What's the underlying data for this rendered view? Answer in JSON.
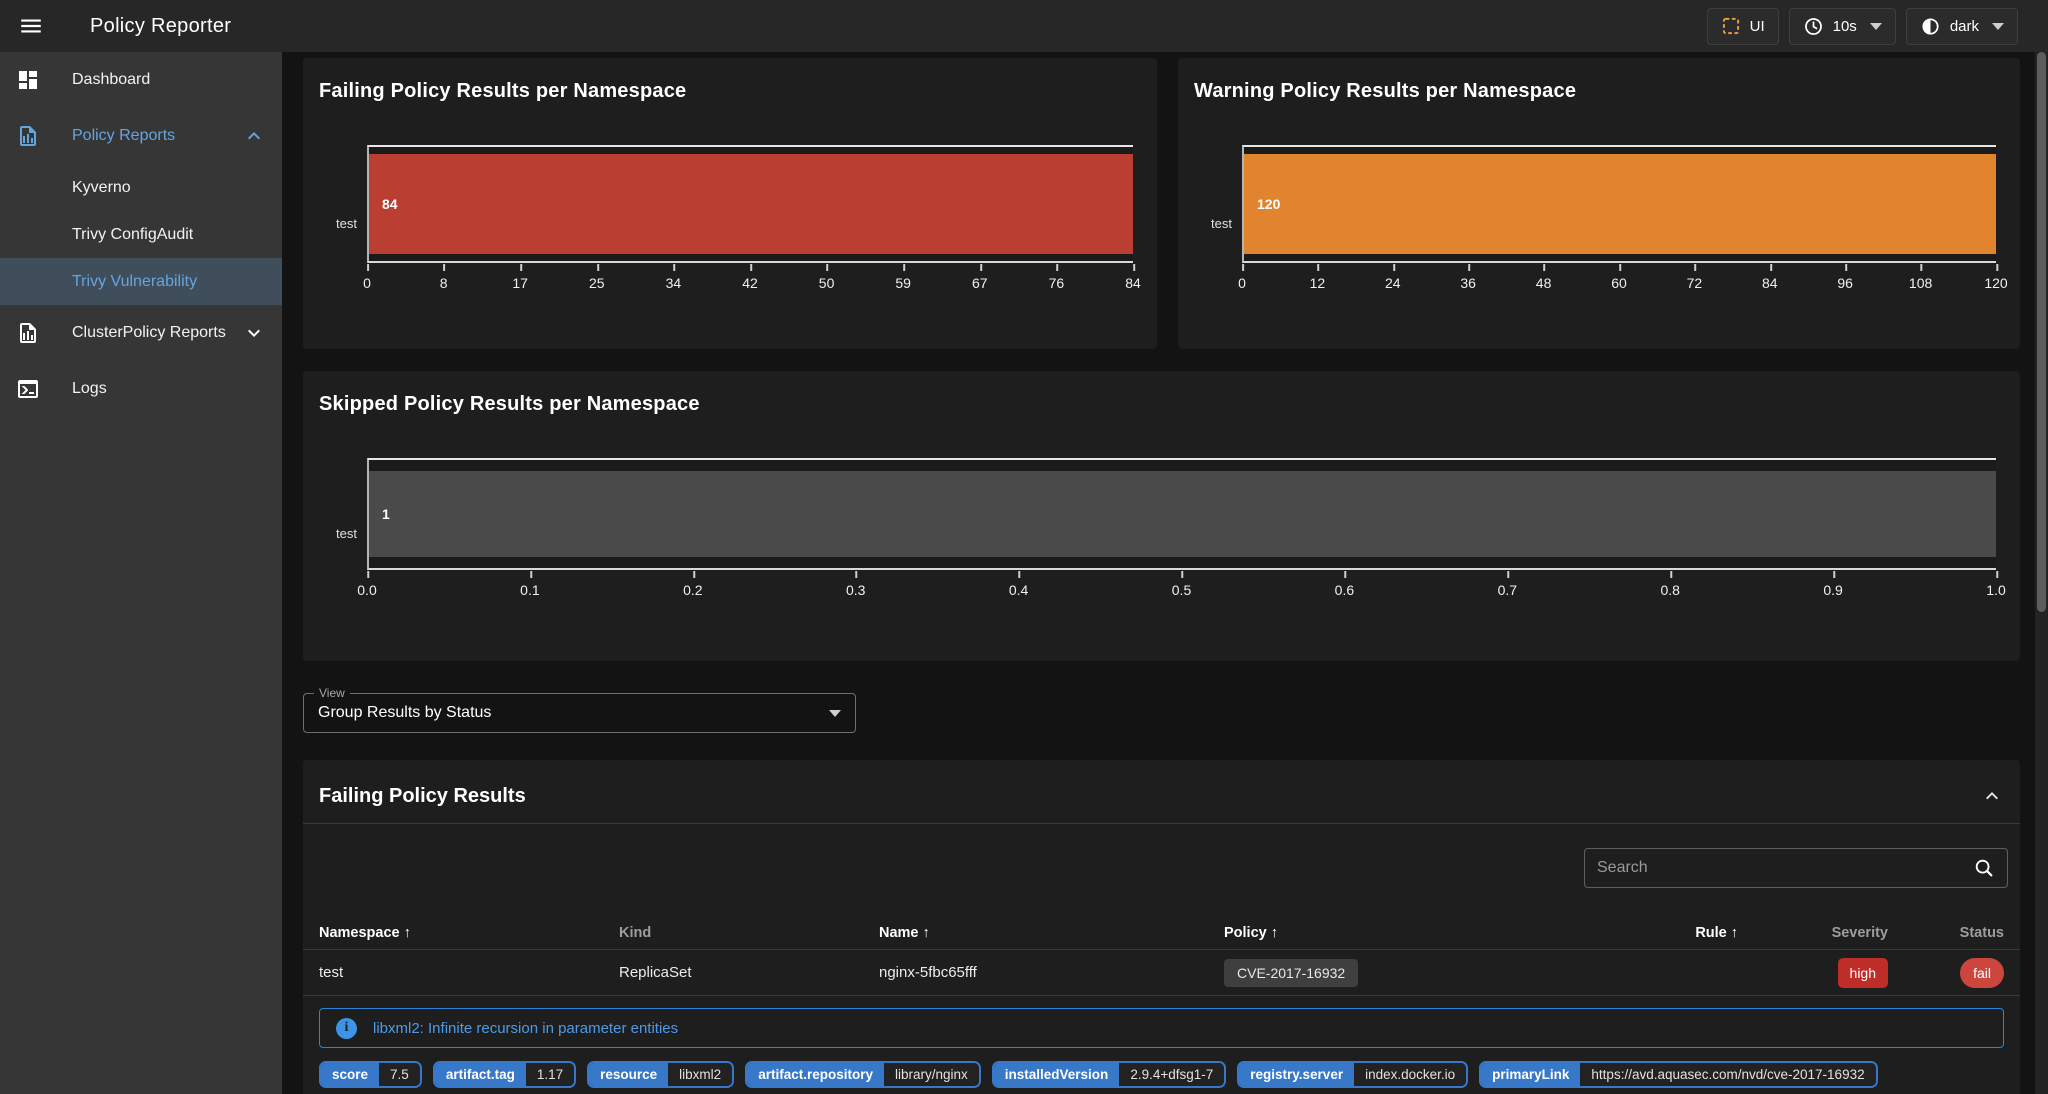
{
  "app_bar": {
    "title": "Policy Reporter",
    "ui_button_label": "UI",
    "refresh_interval_value": "10s",
    "theme_value": "dark"
  },
  "sidebar": {
    "items": [
      {
        "label": "Dashboard"
      },
      {
        "label": "Policy Reports"
      },
      {
        "label": "ClusterPolicy Reports"
      },
      {
        "label": "Logs"
      }
    ],
    "policy_reports_children": [
      {
        "label": "Kyverno",
        "active": false
      },
      {
        "label": "Trivy ConfigAudit",
        "active": false
      },
      {
        "label": "Trivy Vulnerability",
        "active": true
      }
    ]
  },
  "view_select": {
    "label": "View",
    "value": "Group Results by Status"
  },
  "results_section": {
    "title": "Failing Policy Results",
    "search_placeholder": "Search",
    "table": {
      "columns": [
        {
          "label": "Namespace",
          "arrow": "↑"
        },
        {
          "label": "Kind",
          "arrow": ""
        },
        {
          "label": "Name",
          "arrow": "↑"
        },
        {
          "label": "Policy",
          "arrow": "↑"
        },
        {
          "label": "Rule",
          "arrow": "↑"
        },
        {
          "label": "Severity",
          "arrow": ""
        },
        {
          "label": "Status",
          "arrow": ""
        }
      ],
      "rows": [
        {
          "namespace": "test",
          "kind": "ReplicaSet",
          "name": "nginx-5fbc65fff",
          "policy": "CVE-2017-16932",
          "rule": "",
          "severity": "high",
          "status": "fail"
        }
      ]
    },
    "detail": {
      "message": "libxml2: Infinite recursion in parameter entities",
      "properties": [
        {
          "label": "score",
          "value": "7.5"
        },
        {
          "label": "artifact.tag",
          "value": "1.17"
        },
        {
          "label": "resource",
          "value": "libxml2"
        },
        {
          "label": "artifact.repository",
          "value": "library/nginx"
        },
        {
          "label": "installedVersion",
          "value": "2.9.4+dfsg1-7"
        },
        {
          "label": "registry.server",
          "value": "index.docker.io"
        },
        {
          "label": "primaryLink",
          "value": "https://avd.aquasec.com/nvd/cve-2017-16932"
        }
      ]
    }
  },
  "colors": {
    "accent_blue": "#64A5E0",
    "bar_fail": "#BB3E33",
    "bar_warn": "#E2832D",
    "bar_skip": "#4A4A4A",
    "severity_high": "#BE2D28",
    "status_fail": "#CD463E",
    "info_blue": "#3D94E6",
    "chip_blue": "#3778C8",
    "ui_icon_orange": "#E59B3E"
  },
  "chart_data": [
    {
      "type": "bar",
      "orientation": "horizontal",
      "title": "Failing Policy Results per Namespace",
      "categories": [
        "test"
      ],
      "values": [
        84
      ],
      "xlim": [
        0,
        84
      ],
      "xticks": [
        "0",
        "8",
        "17",
        "25",
        "34",
        "42",
        "50",
        "59",
        "67",
        "76",
        "84"
      ],
      "color": "#BB3E33",
      "grid": false,
      "legend": "none"
    },
    {
      "type": "bar",
      "orientation": "horizontal",
      "title": "Warning Policy Results per Namespace",
      "categories": [
        "test"
      ],
      "values": [
        120
      ],
      "xlim": [
        0,
        120
      ],
      "xticks": [
        "0",
        "12",
        "24",
        "36",
        "48",
        "60",
        "72",
        "84",
        "96",
        "108",
        "120"
      ],
      "color": "#E2832D",
      "grid": false,
      "legend": "none"
    },
    {
      "type": "bar",
      "orientation": "horizontal",
      "title": "Skipped Policy Results per Namespace",
      "categories": [
        "test"
      ],
      "values": [
        1
      ],
      "xlim": [
        0,
        1
      ],
      "xticks": [
        "0.0",
        "0.1",
        "0.2",
        "0.3",
        "0.4",
        "0.5",
        "0.6",
        "0.7",
        "0.8",
        "0.9",
        "1.0"
      ],
      "color": "#4A4A4A",
      "grid": false,
      "legend": "none"
    }
  ]
}
